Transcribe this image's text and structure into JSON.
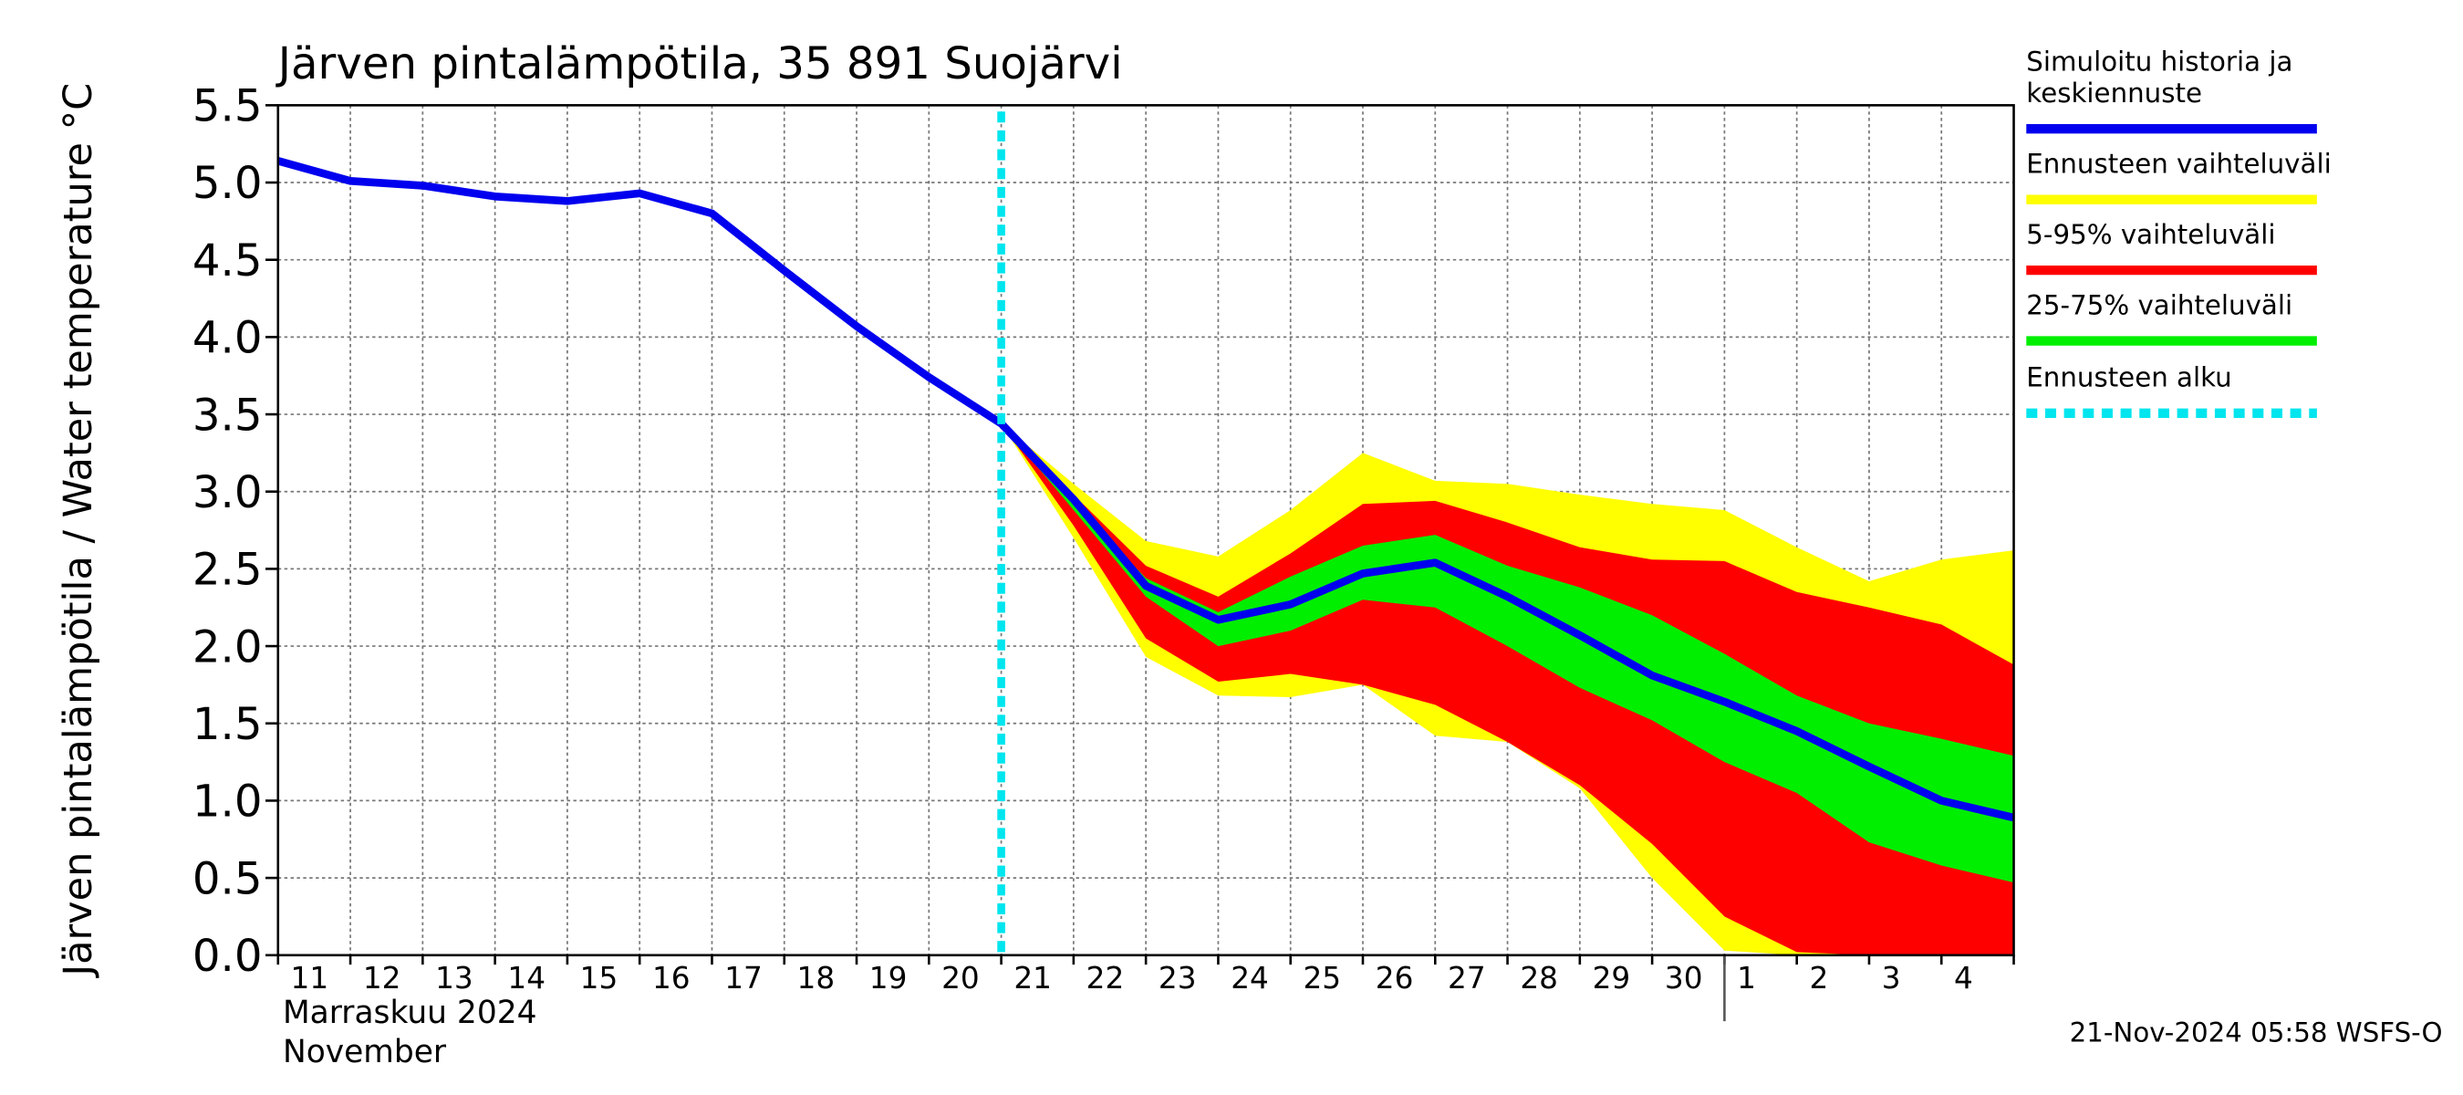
{
  "chart_data": {
    "type": "band-line",
    "title": "Järven pintalämpötila, 35 891 Suojärvi",
    "y_label": "Järven pintalämpötila / Water temperature °C",
    "month_label_fi": "Marraskuu 2024",
    "month_label_en": "November",
    "timestamp": "21-Nov-2024 05:58 WSFS-O",
    "categories": [
      "11",
      "12",
      "13",
      "14",
      "15",
      "16",
      "17",
      "18",
      "19",
      "20",
      "21",
      "22",
      "23",
      "24",
      "25",
      "26",
      "27",
      "28",
      "29",
      "30",
      "1",
      "2",
      "3",
      "4",
      null
    ],
    "month_start_index": 20,
    "forecast_start_index": 10,
    "forecast_name": "Ennusteen alku",
    "forecast_color": "#00e5ee",
    "ylim": [
      0,
      5.5
    ],
    "yticks": [
      {
        "value": 0,
        "label": "0.0"
      },
      0.5,
      {
        "value": 1,
        "label": "1.0"
      },
      1.5,
      {
        "value": 2,
        "label": "2.0"
      },
      2.5,
      {
        "value": 3,
        "label": "3.0"
      },
      3.5,
      {
        "value": 4,
        "label": "4.0"
      },
      4.5,
      {
        "value": 5,
        "label": "5.0"
      },
      5.5
    ],
    "grid": true,
    "bands": [
      {
        "name": "Ennusteen vaihteluväli",
        "color": "#ffff00",
        "upper": [
          null,
          null,
          null,
          null,
          null,
          null,
          null,
          null,
          null,
          null,
          3.44,
          3.05,
          2.68,
          2.58,
          2.88,
          3.25,
          3.07,
          3.05,
          2.98,
          2.92,
          2.88,
          2.64,
          2.42,
          2.56,
          2.62
        ],
        "lower": [
          null,
          null,
          null,
          null,
          null,
          null,
          null,
          null,
          null,
          null,
          3.44,
          2.7,
          1.93,
          1.68,
          1.67,
          1.75,
          1.42,
          1.38,
          1.08,
          0.5,
          0.03,
          0,
          0,
          0,
          0
        ]
      },
      {
        "name": "5-95% vaihteluväli",
        "color": "#ff0000",
        "upper": [
          null,
          null,
          null,
          null,
          null,
          null,
          null,
          null,
          null,
          null,
          3.44,
          2.98,
          2.52,
          2.32,
          2.6,
          2.92,
          2.94,
          2.8,
          2.64,
          2.56,
          2.55,
          2.35,
          2.25,
          2.14,
          1.88
        ],
        "lower": [
          null,
          null,
          null,
          null,
          null,
          null,
          null,
          null,
          null,
          null,
          3.44,
          2.78,
          2.05,
          1.77,
          1.82,
          1.75,
          1.62,
          1.38,
          1.1,
          0.72,
          0.25,
          0.02,
          0,
          0,
          0
        ]
      },
      {
        "name": "25-75% vaihteluväli",
        "color": "#00ee00",
        "upper": [
          null,
          null,
          null,
          null,
          null,
          null,
          null,
          null,
          null,
          null,
          3.44,
          2.92,
          2.44,
          2.22,
          2.45,
          2.65,
          2.72,
          2.52,
          2.38,
          2.2,
          1.95,
          1.68,
          1.5,
          1.4,
          1.29
        ],
        "lower": [
          null,
          null,
          null,
          null,
          null,
          null,
          null,
          null,
          null,
          null,
          3.44,
          2.88,
          2.32,
          2.0,
          2.1,
          2.3,
          2.25,
          2.0,
          1.73,
          1.52,
          1.25,
          1.05,
          0.73,
          0.58,
          0.47
        ]
      }
    ],
    "series": [
      {
        "name": "Simuloitu historia ja keskiennuste",
        "color": "#0000ee",
        "values": [
          5.14,
          5.01,
          4.98,
          4.91,
          4.88,
          4.93,
          4.8,
          4.43,
          4.07,
          3.74,
          3.44,
          2.95,
          2.39,
          2.17,
          2.27,
          2.47,
          2.54,
          2.32,
          2.07,
          1.81,
          1.64,
          1.45,
          1.22,
          1.0,
          0.89
        ]
      }
    ]
  }
}
